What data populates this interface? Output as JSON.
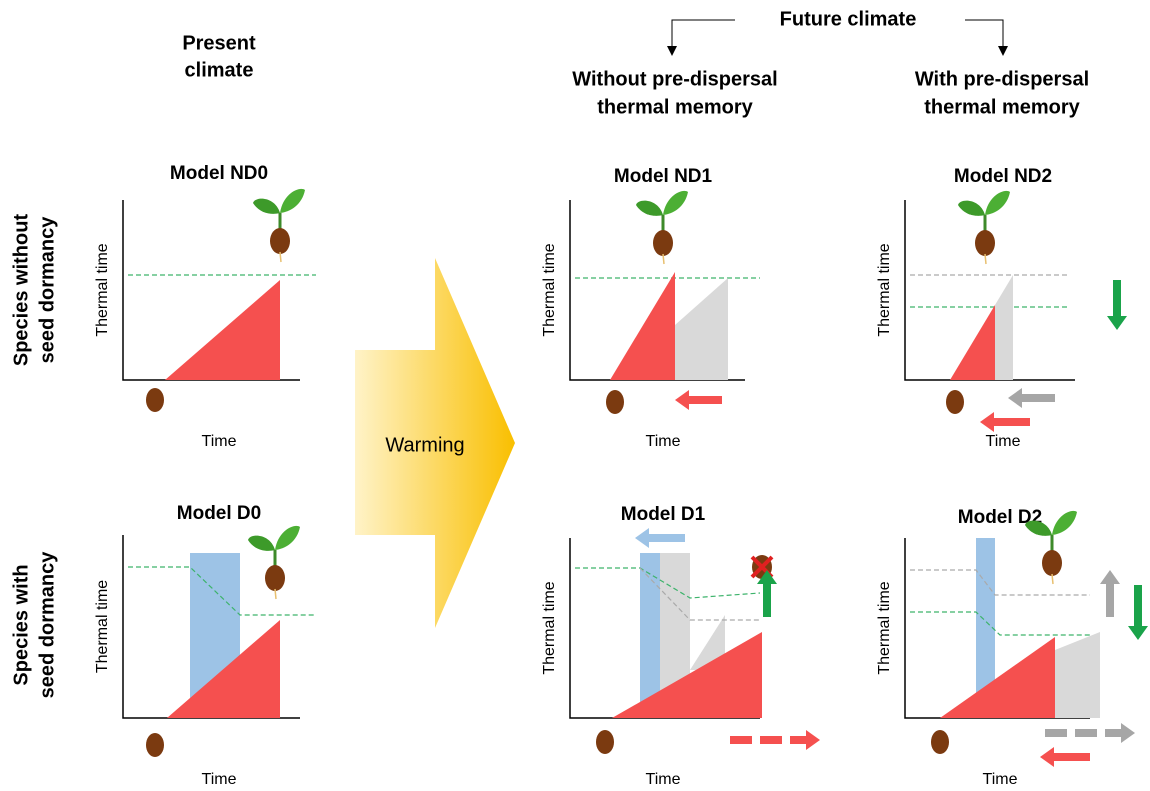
{
  "header": {
    "present": [
      "Present",
      "climate"
    ],
    "future": "Future climate",
    "without_memory": [
      "Without pre-dispersal",
      "thermal memory"
    ],
    "with_memory": [
      "With pre-dispersal",
      "thermal memory"
    ]
  },
  "rows": [
    [
      "Species without",
      "seed dormancy"
    ],
    [
      "Species with",
      "seed dormancy"
    ]
  ],
  "warming": "Warming",
  "panels": [
    {
      "title": "Model ND0",
      "y_label": "Thermal time",
      "x_label": "Time"
    },
    {
      "title": "Model ND1",
      "y_label": "Thermal time",
      "x_label": "Time"
    },
    {
      "title": "Model ND2",
      "y_label": "Thermal time",
      "x_label": "Time"
    },
    {
      "title": "Model D0",
      "y_label": "Thermal time",
      "x_label": "Time"
    },
    {
      "title": "Model D1",
      "y_label": "Thermal time",
      "x_label": "Time"
    },
    {
      "title": "Model D2",
      "y_label": "Thermal time",
      "x_label": "Time"
    }
  ]
}
